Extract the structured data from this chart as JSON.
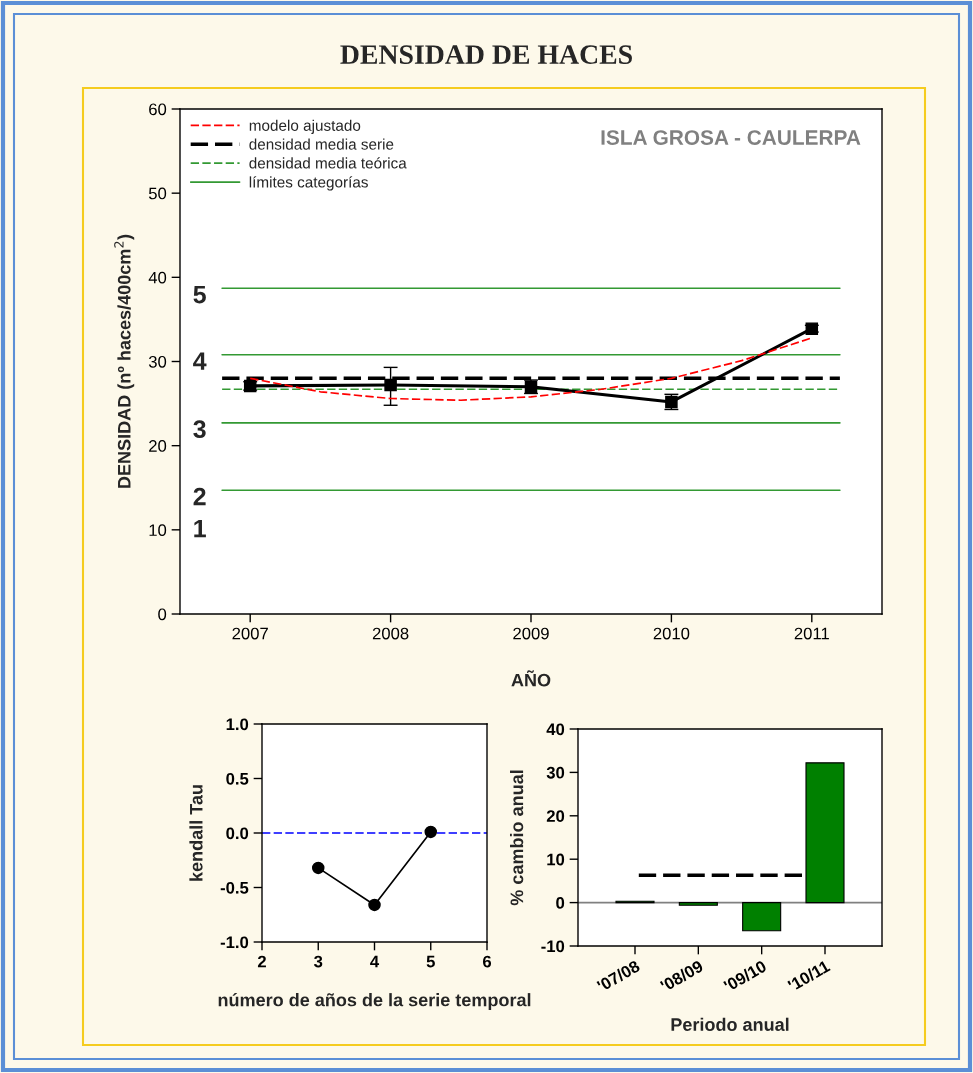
{
  "chart_data": [
    {
      "type": "line",
      "title": "DENSIDAD DE HACES",
      "xlabel": "AÑO",
      "ylabel": "DENSIDAD (nº haces/400cm$^{2}$)",
      "xlim": [
        2006.5,
        2011.5
      ],
      "xticks": [
        2007,
        2008,
        2009,
        2010,
        2011
      ],
      "ylim": [
        0,
        60
      ],
      "yticks": [
        0,
        10,
        20,
        30,
        40,
        50,
        60
      ],
      "series": [
        {
          "color": "#000000",
          "marker": "square",
          "line_style": "solid",
          "x": [
            2007,
            2008,
            2009,
            2010,
            2011
          ],
          "values": [
            27.1,
            27.2,
            27.0,
            25.2,
            33.9
          ],
          "errors": [
            0.5,
            [
              24.8,
              29.3
            ],
            0.8,
            0.9,
            0.4
          ]
        },
        {
          "name": "modelo ajustado",
          "color": "#ff0000",
          "marker": "none",
          "line_style": "dashed",
          "x": [
            2007,
            2007.5,
            2008,
            2008.5,
            2009,
            2009.5,
            2010,
            2010.5,
            2011
          ],
          "values": [
            28.0,
            26.4,
            25.6,
            25.4,
            25.8,
            26.7,
            28.0,
            30.1,
            32.8
          ]
        }
      ],
      "ref_lines": [
        {
          "axis": "y",
          "value": 28.0,
          "label": "densidad media serie",
          "color": "#000000",
          "line_style": "dashed"
        },
        {
          "axis": "y",
          "value": 26.7,
          "label": "densidad media teórica",
          "color": "#339933",
          "line_style": "dashed"
        },
        {
          "axis": "y",
          "value": 38.7,
          "label": "límites categorías",
          "color": "#339933",
          "line_style": "solid"
        },
        {
          "axis": "y",
          "value": 30.8,
          "color": "#339933",
          "line_style": "solid"
        },
        {
          "axis": "y",
          "value": 22.7,
          "color": "#339933",
          "line_style": "solid"
        },
        {
          "axis": "y",
          "value": 14.7,
          "color": "#339933",
          "line_style": "solid"
        }
      ],
      "annotations": [
        "ISLA GROSA - CAULERPA",
        "5",
        "4",
        "3",
        "2",
        "1"
      ],
      "legend": "top left",
      "grid": false
    },
    {
      "type": "line",
      "xlabel": "número de años de la serie temporal",
      "ylabel": "kendall Tau",
      "xlim": [
        2,
        6
      ],
      "xticks": [
        2,
        3,
        4,
        5,
        6
      ],
      "ylim": [
        -1,
        1
      ],
      "yticks": [
        {
          "value": -1,
          "label": "-1.0"
        },
        {
          "value": -0.5,
          "label": "-0.5"
        },
        {
          "value": 0,
          "label": "0.0"
        },
        {
          "value": 0.5,
          "label": "0.5"
        },
        {
          "value": 1,
          "label": "1.0"
        }
      ],
      "series": [
        {
          "color": "#000000",
          "marker": "circle",
          "line_style": "solid",
          "x": [
            3,
            4,
            5
          ],
          "values": [
            -0.32,
            -0.66,
            0.01
          ]
        }
      ],
      "ref_lines": [
        {
          "axis": "y",
          "value": 0,
          "color": "#0000ff",
          "line_style": "dashed"
        }
      ],
      "legend": false,
      "grid": false
    },
    {
      "type": "bar",
      "xlabel": "Periodo anual",
      "ylabel": "% cambio anual",
      "categories": [
        "'07/08",
        "'08/09",
        "'09/10",
        "'10/11"
      ],
      "ylim": [
        -10,
        40
      ],
      "yticks": [
        -10,
        0,
        10,
        20,
        30,
        40
      ],
      "series": [
        {
          "color": "#008000",
          "values": [
            0.3,
            -0.6,
            -6.5,
            32.2
          ]
        }
      ],
      "ref_lines": [
        {
          "axis": "y",
          "value": 0,
          "color": "#808080",
          "line_style": "solid"
        },
        {
          "axis": "y",
          "value": 6.3,
          "color": "#000000",
          "line_style": "dashed"
        }
      ],
      "legend": false,
      "grid": false
    }
  ]
}
